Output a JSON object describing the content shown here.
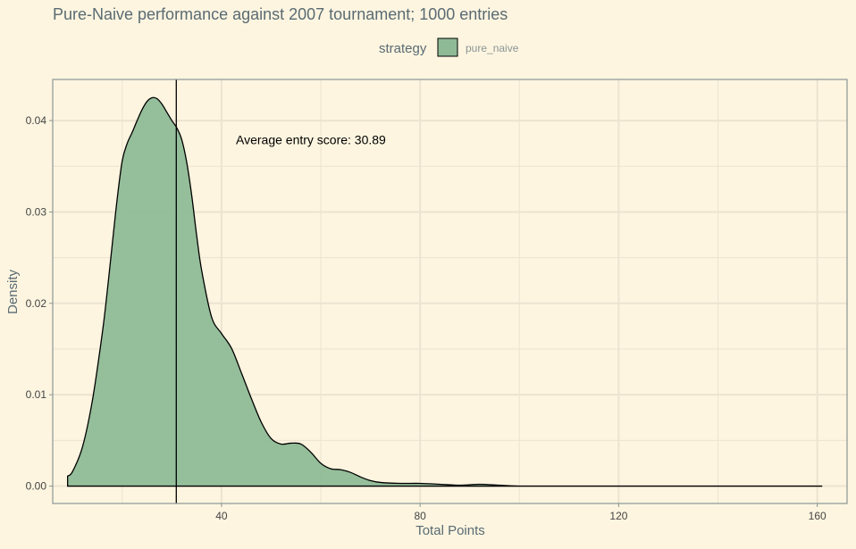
{
  "chart_data": {
    "type": "area",
    "title": "Pure-Naive performance against 2007 tournament; 1000 entries",
    "xlabel": "Total Points",
    "ylabel": "Density",
    "xlim": [
      6,
      166
    ],
    "ylim": [
      -0.0019,
      0.0445
    ],
    "x_ticks": [
      40,
      80,
      120,
      160
    ],
    "y_ticks": [
      0.0,
      0.01,
      0.02,
      0.03,
      0.04
    ],
    "y_tick_labels": [
      "0.00",
      "0.01",
      "0.02",
      "0.03",
      "0.04"
    ],
    "grid": true,
    "legend": {
      "title": "strategy",
      "position": "top",
      "entries": [
        {
          "label": "pure_naive",
          "color": "#8fba96"
        }
      ]
    },
    "series": [
      {
        "name": "pure_naive",
        "color": "#8fba96",
        "x": [
          9,
          10,
          12,
          14,
          16,
          17,
          18,
          19,
          20,
          21,
          22,
          23,
          24,
          25,
          26,
          27,
          28,
          29,
          30,
          31,
          32,
          33,
          34,
          35,
          36,
          38,
          40,
          42,
          44,
          46,
          48,
          50,
          52,
          54,
          56,
          58,
          60,
          62,
          64,
          66,
          68,
          70,
          72,
          76,
          80,
          84,
          88,
          92,
          96,
          100,
          110,
          120,
          140,
          161
        ],
        "y": [
          0.0011,
          0.0016,
          0.0043,
          0.0094,
          0.0168,
          0.0214,
          0.0265,
          0.0315,
          0.0356,
          0.0375,
          0.0387,
          0.04,
          0.0412,
          0.0421,
          0.0425,
          0.0424,
          0.0418,
          0.0409,
          0.04,
          0.0392,
          0.0379,
          0.0354,
          0.0318,
          0.0274,
          0.0236,
          0.0185,
          0.0167,
          0.0151,
          0.0124,
          0.0096,
          0.007,
          0.0052,
          0.0046,
          0.0047,
          0.0046,
          0.0037,
          0.0025,
          0.0019,
          0.0018,
          0.0015,
          0.001,
          0.0006,
          0.0004,
          0.0003,
          0.0003,
          0.0002,
          0.0001,
          0.0002,
          0.0001,
          0.0,
          0.0,
          0.0,
          0.0,
          0.0
        ]
      }
    ],
    "vline": {
      "x": 30.89
    },
    "annotation": {
      "text": "Average entry score: 30.89",
      "x": 58,
      "y": 0.0379
    }
  },
  "colors": {
    "background": "#fdf5e0",
    "grid": "#ece3d0",
    "axis": "#8a9595",
    "title_text": "#5a6b73",
    "tick_text": "#444444"
  }
}
